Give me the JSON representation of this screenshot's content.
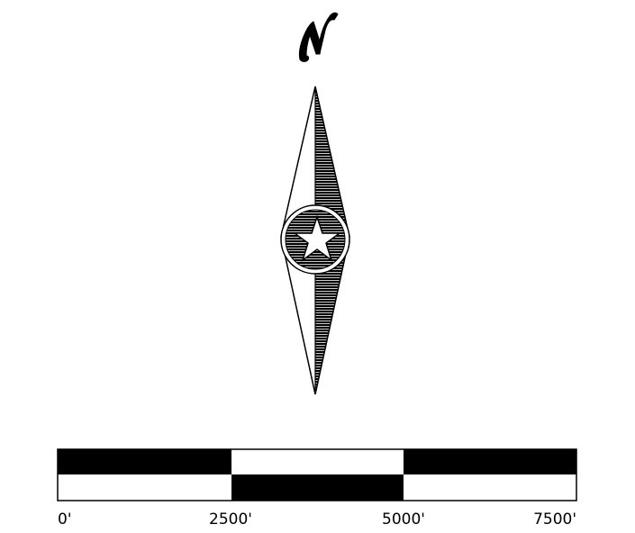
{
  "north_arrow": {
    "letter": "N",
    "fill_color": "#000000",
    "outline_color": "#000000",
    "background_color": "#ffffff",
    "emblem": "star-icon"
  },
  "scale_bar": {
    "labels": [
      "0'",
      "2500'",
      "5000'",
      "7500'"
    ],
    "dark_color": "#000000",
    "light_color": "#ffffff"
  }
}
